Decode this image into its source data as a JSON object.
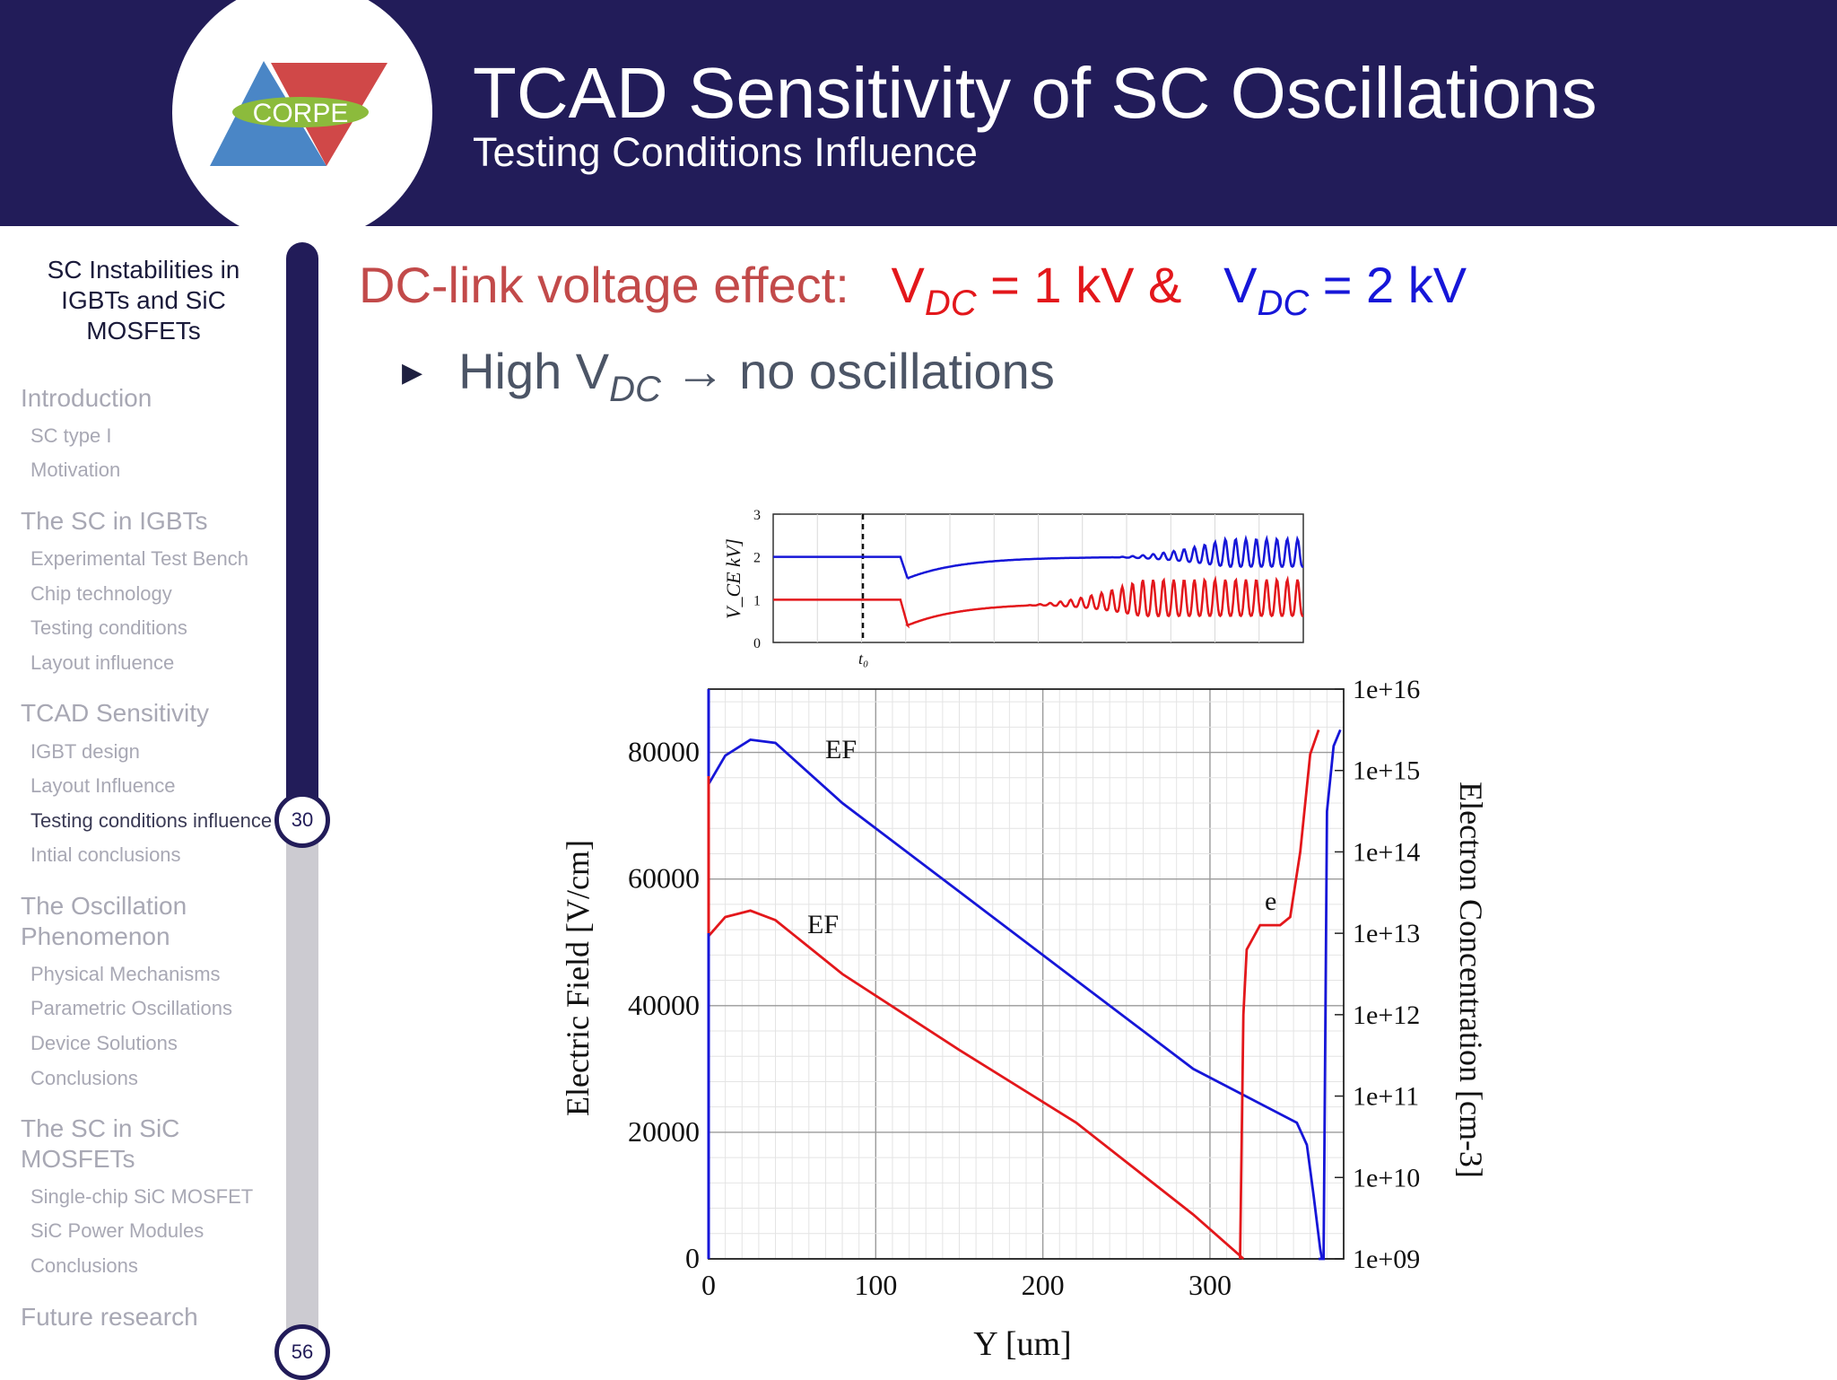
{
  "header": {
    "title": "TCAD Sensitivity of SC Oscillations",
    "subtitle": "Testing Conditions Influence",
    "logo_text": "CORPE"
  },
  "sidebar": {
    "title": "SC Instabilities in IGBTs and SiC MOSFETs",
    "sections": [
      {
        "label": "Introduction",
        "items": [
          "SC type I",
          "Motivation"
        ]
      },
      {
        "label": "The SC in IGBTs",
        "items": [
          "Experimental Test Bench",
          "Chip technology",
          "Testing conditions",
          "Layout influence"
        ]
      },
      {
        "label": "TCAD Sensitivity",
        "items": [
          "IGBT design",
          "Layout Influence",
          "Testing conditions influence",
          "Intial conclusions"
        ]
      },
      {
        "label": "The Oscillation Phenomenon",
        "items": [
          "Physical Mechanisms",
          "Parametric Oscillations",
          "Device Solutions",
          "Conclusions"
        ]
      },
      {
        "label": "The SC in SiC MOSFETs",
        "items": [
          "Single-chip SiC MOSFET",
          "SiC Power Modules",
          "Conclusions"
        ]
      },
      {
        "label": "Future research",
        "items": []
      }
    ],
    "active_item": "Testing conditions influence",
    "current_page": "30",
    "total_pages": "56",
    "progress_fraction": 0.535
  },
  "content": {
    "heading_prefix": "DC-link voltage effect:",
    "v1_symbol": "V",
    "v1_sub": "DC",
    "v1_value": "= 1 kV &",
    "v2_symbol": "V",
    "v2_sub": "DC",
    "v2_value": "= 2 kV",
    "bullet_text1": "High V",
    "bullet_sub": "DC",
    "bullet_text2": "→ no oscillations"
  },
  "colors": {
    "red": "#e3171b",
    "blue": "#1616d8",
    "navy": "#221c59"
  },
  "chart_data": [
    {
      "type": "line",
      "ylabel": "V_CE kV]",
      "xlabel": "",
      "x_marker": "t₀",
      "x_marker_at": 0.24,
      "ylim": [
        0,
        3
      ],
      "yticks": [
        "0",
        "1",
        "2",
        "3"
      ],
      "series": [
        {
          "color": "#1616d8",
          "steady_before": 2.0,
          "dip": 1.5,
          "steady_after": 2.0,
          "oscillation_amplitude": 0.65,
          "oscillation_start": 0.72
        },
        {
          "color": "#e3171b",
          "steady_before": 1.0,
          "dip": 0.4,
          "steady_after": 0.92,
          "oscillation_amplitude": 0.85,
          "oscillation_start": 0.56
        }
      ]
    },
    {
      "type": "line",
      "xlabel": "Y [um]",
      "ylabel": "Electric Field [V/cm]",
      "y2label": "Electron Concentration [cm-3]",
      "xlim": [
        0,
        380
      ],
      "ylim": [
        0,
        90000
      ],
      "y2lim": [
        "1e+09",
        "1e+16"
      ],
      "xticks": [
        "0",
        "100",
        "200",
        "300"
      ],
      "yticks": [
        "0",
        "20000",
        "40000",
        "60000",
        "80000"
      ],
      "y2ticks": [
        "1e+09",
        "1e+10",
        "1e+11",
        "1e+12",
        "1e+13",
        "1e+14",
        "1e+15",
        "1e+16"
      ],
      "annotations": [
        "EF",
        "EF",
        "e"
      ],
      "series": [
        {
          "color": "#1616d8",
          "label": "EF",
          "x": [
            0,
            10,
            25,
            40,
            80,
            150,
            220,
            290,
            352,
            358,
            362,
            366,
            367
          ],
          "y": [
            75000,
            79500,
            82000,
            81500,
            72000,
            58000,
            44000,
            30000,
            21500,
            18000,
            10000,
            1500,
            0
          ]
        },
        {
          "color": "#e3171b",
          "label": "EF",
          "x": [
            0,
            10,
            25,
            40,
            80,
            150,
            220,
            290,
            318,
            320
          ],
          "y": [
            51000,
            54000,
            55000,
            53500,
            45000,
            33000,
            21500,
            7000,
            500,
            0
          ]
        },
        {
          "color": "#e3171b",
          "label": "e",
          "x": [
            318,
            320,
            322,
            326,
            330,
            340,
            345,
            350,
            355,
            360,
            365,
            367,
            370,
            380
          ],
          "y_exp": [
            9,
            9,
            9,
            9,
            9,
            9,
            9,
            9,
            9,
            9,
            9,
            9,
            9,
            9
          ],
          "note_shape": [
            [
              318,
              9.0
            ],
            [
              320,
              12.0
            ],
            [
              322,
              12.8
            ],
            [
              330,
              13.1
            ],
            [
              342,
              13.1
            ],
            [
              348,
              13.2
            ],
            [
              354,
              14.0
            ],
            [
              360,
              15.2
            ],
            [
              365,
              15.5
            ]
          ]
        },
        {
          "color": "#1616d8",
          "label": "e",
          "shape": [
            [
              365,
              9.0
            ],
            [
              368,
              9.0
            ],
            [
              370,
              14.5
            ],
            [
              374,
              15.3
            ],
            [
              378,
              15.5
            ]
          ]
        }
      ]
    }
  ]
}
